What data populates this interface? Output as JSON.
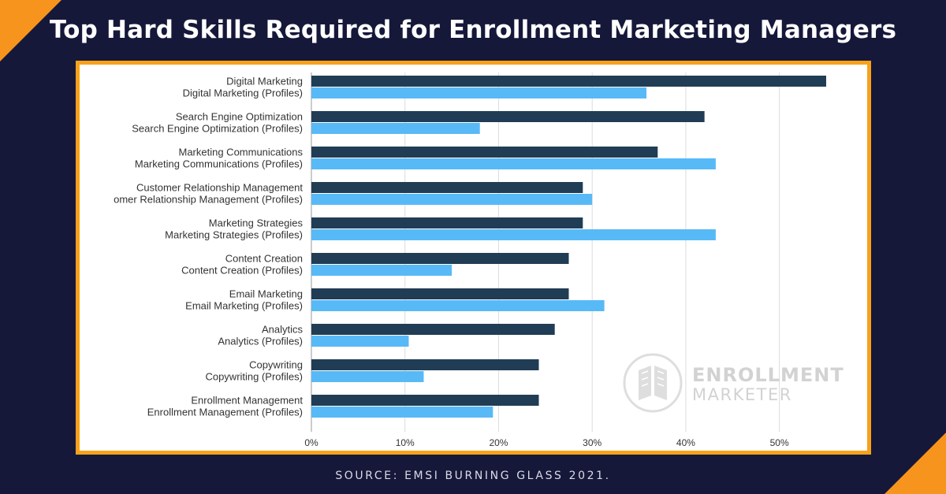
{
  "title": "Top Hard Skills Required for Enrollment Marketing Managers",
  "source": "SOURCE: EMSI BURNING GLASS 2021.",
  "logo": {
    "line1": "ENROLLMENT",
    "line2": "MARKETER",
    "icon": "book-icon"
  },
  "colors": {
    "background": "#16183a",
    "accent": "#f7941d",
    "series_primary": "#213d55",
    "series_profiles": "#58b9f7"
  },
  "chart_data": {
    "type": "bar",
    "orientation": "horizontal",
    "categories": [
      "Digital Marketing",
      "Search Engine Optimization",
      "Marketing Communications",
      "Customer Relationship Management",
      "Marketing Strategies",
      "Content Creation",
      "Email Marketing",
      "Analytics",
      "Copywriting",
      "Enrollment Management"
    ],
    "series": [
      {
        "labels": [
          "Digital Marketing",
          "Search Engine Optimization",
          "Marketing Communications",
          "Customer Relationship Management",
          "Marketing Strategies",
          "Content Creation",
          "Email Marketing",
          "Analytics",
          "Copywriting",
          "Enrollment Management"
        ],
        "values": [
          55,
          42,
          37,
          29,
          29,
          27.5,
          27.5,
          26,
          24.3,
          24.3
        ]
      },
      {
        "labels": [
          "Digital Marketing (Profiles)",
          "Search Engine Optimization (Profiles)",
          "Marketing Communications (Profiles)",
          "omer Relationship Management (Profiles)",
          "Marketing Strategies (Profiles)",
          "Content Creation (Profiles)",
          "Email Marketing (Profiles)",
          "Analytics (Profiles)",
          "Copywriting (Profiles)",
          "Enrollment Management (Profiles)"
        ],
        "values": [
          35.8,
          18,
          43.2,
          30,
          43.2,
          15,
          31.3,
          10.4,
          12,
          19.4
        ]
      }
    ],
    "xlim": [
      0,
      55
    ],
    "xticks": [
      "0%",
      "10%",
      "20%",
      "30%",
      "40%",
      "50%"
    ],
    "tick_values": [
      0,
      10,
      20,
      30,
      40,
      50
    ],
    "grid": true,
    "legend": "none"
  }
}
